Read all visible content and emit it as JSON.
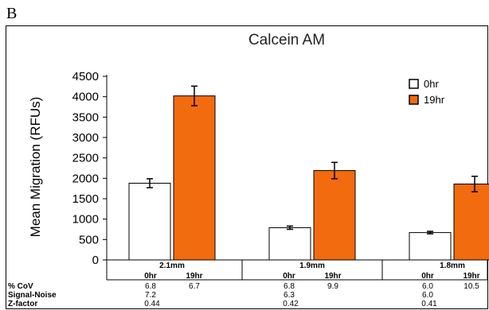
{
  "panel_label": "B",
  "chart_data": {
    "type": "bar",
    "title": "Calcein AM",
    "ylabel": "Mean Migration (RFUs)",
    "xlabel": "",
    "ylim": [
      0,
      4500
    ],
    "yticks": [
      0,
      500,
      1000,
      1500,
      2000,
      2500,
      3000,
      3500,
      4000,
      4500
    ],
    "categories": [
      "2.1mm",
      "1.9mm",
      "1.8mm"
    ],
    "sub_labels": [
      "0hr",
      "19hr"
    ],
    "legend_position": "top-right",
    "series": [
      {
        "name": "0hr",
        "color": "#ffffff",
        "values": [
          1880,
          790,
          670
        ],
        "errors": [
          110,
          40,
          30
        ]
      },
      {
        "name": "19hr",
        "color": "#f26b0f",
        "values": [
          4020,
          2190,
          1860
        ],
        "errors": [
          240,
          200,
          190
        ]
      }
    ],
    "stats": {
      "row_labels": [
        "% CoV",
        "Signal-Noise",
        "Z-factor"
      ],
      "groups": [
        {
          "cov": [
            "6.8",
            "6.7"
          ],
          "signal_noise": "7.2",
          "z_factor": "0.44"
        },
        {
          "cov": [
            "6.8",
            "9.9"
          ],
          "signal_noise": "6.3",
          "z_factor": "0.42"
        },
        {
          "cov": [
            "6.0",
            "10.5"
          ],
          "signal_noise": "6.0",
          "z_factor": "0.41"
        }
      ]
    }
  }
}
